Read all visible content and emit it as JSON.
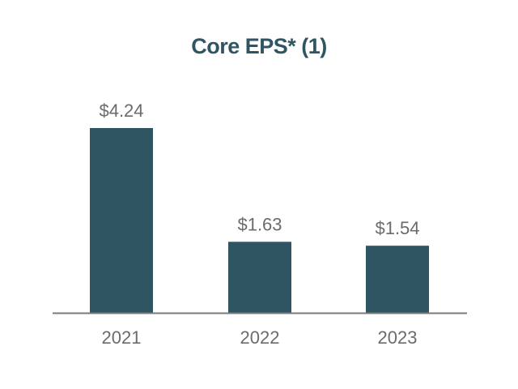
{
  "chart_data": {
    "type": "bar",
    "title": "Core EPS* (1)",
    "categories": [
      "2021",
      "2022",
      "2023"
    ],
    "values": [
      4.24,
      1.63,
      1.54
    ],
    "value_labels": [
      "$4.24",
      "$1.63",
      "$1.54"
    ],
    "xlabel": "",
    "ylabel": "",
    "ylim": [
      0,
      4.24
    ],
    "grid": false,
    "legend": "none"
  },
  "colors": {
    "bar": "#2f5563",
    "title": "#2f5563",
    "axis": "#7a7a7a",
    "label": "#6b6b6b"
  }
}
